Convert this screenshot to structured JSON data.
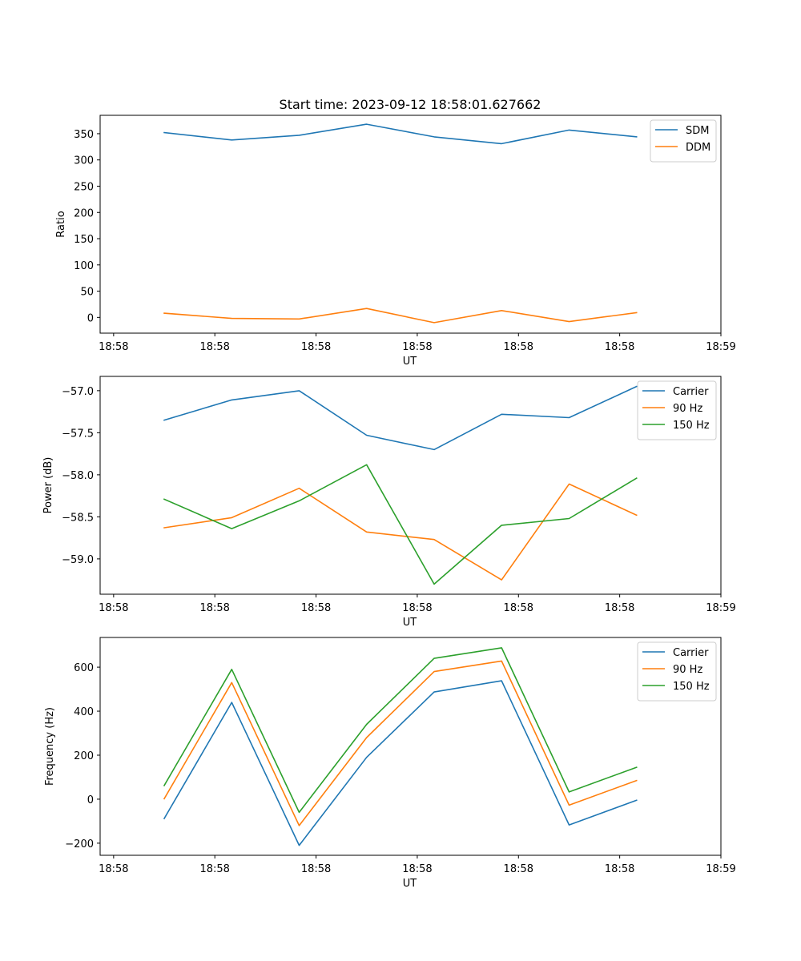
{
  "chart_data": [
    {
      "type": "line",
      "title": "Start time: 2023-09-12 18:58:01.627662",
      "xlabel": "UT",
      "ylabel": "Ratio",
      "xlim": [
        -0.2,
        9.0
      ],
      "ylim": [
        -30,
        385
      ],
      "x": [
        0.75,
        1.75,
        2.75,
        3.75,
        4.75,
        5.75,
        6.75,
        7.75
      ],
      "x_ticks": [
        0,
        1.5,
        3,
        4.5,
        6,
        7.5,
        9
      ],
      "x_tick_labels": [
        "18:58",
        "18:58",
        "18:58",
        "18:58",
        "18:58",
        "18:58",
        "18:59"
      ],
      "y_ticks": [
        0,
        50,
        100,
        150,
        200,
        250,
        300,
        350
      ],
      "y_tick_labels": [
        "0",
        "50",
        "100",
        "150",
        "200",
        "250",
        "300",
        "350"
      ],
      "legend_position": "top-right",
      "series": [
        {
          "name": "SDM",
          "color": "#1f77b4",
          "values": [
            352,
            338,
            347,
            368,
            344,
            331,
            357,
            344
          ]
        },
        {
          "name": "DDM",
          "color": "#ff7f0e",
          "values": [
            8,
            -2,
            -3,
            17,
            -10,
            13,
            -8,
            9
          ]
        }
      ]
    },
    {
      "type": "line",
      "title": "",
      "xlabel": "UT",
      "ylabel": "Power (dB)",
      "xlim": [
        -0.2,
        9.0
      ],
      "ylim": [
        -59.42,
        -56.83
      ],
      "x": [
        0.75,
        1.75,
        2.75,
        3.75,
        4.75,
        5.75,
        6.75,
        7.75
      ],
      "x_ticks": [
        0,
        1.5,
        3,
        4.5,
        6,
        7.5,
        9
      ],
      "x_tick_labels": [
        "18:58",
        "18:58",
        "18:58",
        "18:58",
        "18:58",
        "18:58",
        "18:59"
      ],
      "y_ticks": [
        -59.0,
        -58.5,
        -58.0,
        -57.5,
        -57.0
      ],
      "y_tick_labels": [
        "−59.0",
        "−58.5",
        "−58.0",
        "−57.5",
        "−57.0"
      ],
      "legend_position": "top-right",
      "series": [
        {
          "name": "Carrier",
          "color": "#1f77b4",
          "values": [
            -57.35,
            -57.11,
            -57.0,
            -57.53,
            -57.7,
            -57.28,
            -57.32,
            -56.95
          ]
        },
        {
          "name": "90 Hz",
          "color": "#ff7f0e",
          "values": [
            -58.63,
            -58.51,
            -58.16,
            -58.68,
            -58.77,
            -59.25,
            -58.11,
            -58.48
          ]
        },
        {
          "name": "150 Hz",
          "color": "#2ca02c",
          "values": [
            -58.29,
            -58.64,
            -58.31,
            -57.88,
            -59.3,
            -58.6,
            -58.52,
            -58.04
          ]
        }
      ]
    },
    {
      "type": "line",
      "title": "",
      "xlabel": "UT",
      "ylabel": "Frequency (Hz)",
      "xlim": [
        -0.2,
        9.0
      ],
      "ylim": [
        -255,
        735
      ],
      "x": [
        0.75,
        1.75,
        2.75,
        3.75,
        4.75,
        5.75,
        6.75,
        7.75
      ],
      "x_ticks": [
        0,
        1.5,
        3,
        4.5,
        6,
        7.5,
        9
      ],
      "x_tick_labels": [
        "18:58",
        "18:58",
        "18:58",
        "18:58",
        "18:58",
        "18:58",
        "18:59"
      ],
      "y_ticks": [
        -200,
        0,
        200,
        400,
        600
      ],
      "y_tick_labels": [
        "−200",
        "0",
        "200",
        "400",
        "600"
      ],
      "legend_position": "top-right",
      "series": [
        {
          "name": "Carrier",
          "color": "#1f77b4",
          "values": [
            -88,
            440,
            -210,
            190,
            487,
            538,
            -117,
            -5
          ]
        },
        {
          "name": "90 Hz",
          "color": "#ff7f0e",
          "values": [
            2,
            530,
            -120,
            280,
            580,
            628,
            -27,
            85
          ]
        },
        {
          "name": "150 Hz",
          "color": "#2ca02c",
          "values": [
            62,
            590,
            -60,
            340,
            640,
            688,
            33,
            145
          ]
        }
      ]
    }
  ]
}
